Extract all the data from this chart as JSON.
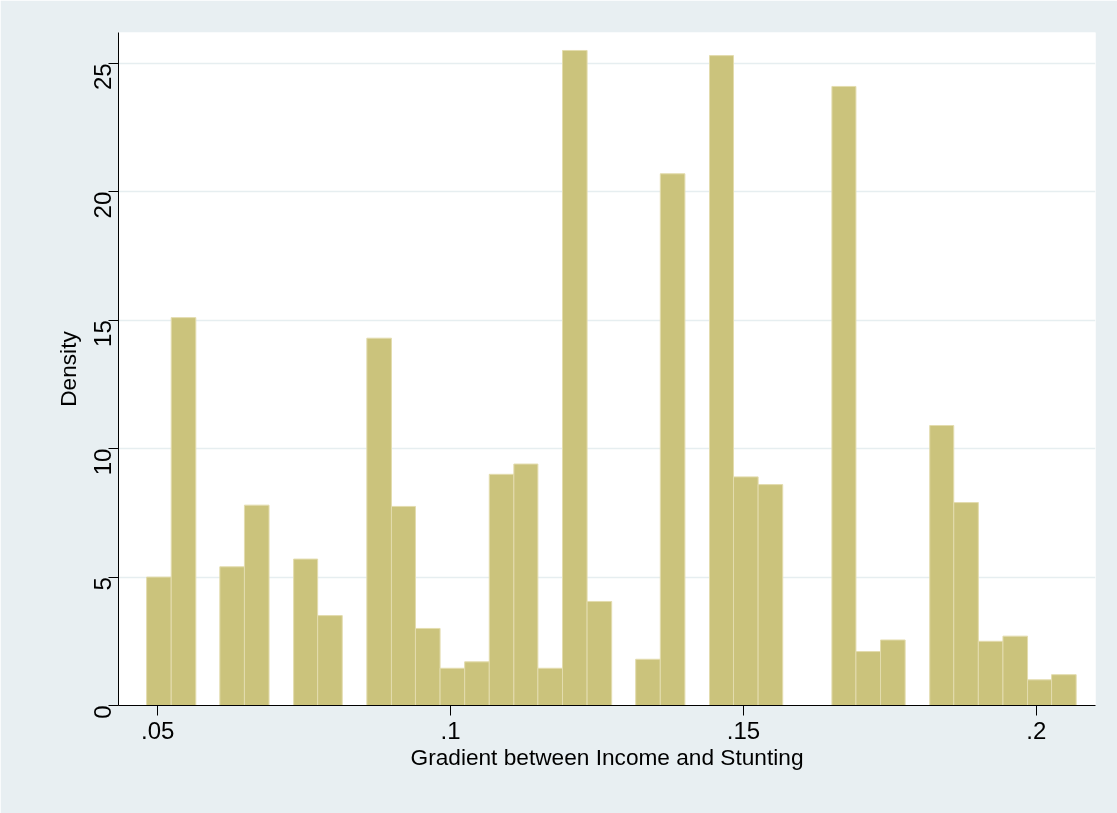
{
  "chart_data": {
    "type": "histogram",
    "xlabel": "Gradient between Income and Stunting",
    "ylabel": "Density",
    "bins": [
      0.0481,
      0.0523,
      0.0565,
      0.0606,
      0.0648,
      0.069,
      0.0732,
      0.0773,
      0.0815,
      0.0857,
      0.0899,
      0.094,
      0.0982,
      0.1024,
      0.1066,
      0.1108,
      0.1149,
      0.1191,
      0.1233,
      0.1275,
      0.1316,
      0.1358,
      0.14,
      0.1442,
      0.1483,
      0.1525,
      0.1567,
      0.1651,
      0.1692,
      0.1734,
      0.1776,
      0.1818,
      0.1859,
      0.1901,
      0.1943,
      0.1985,
      0.2026,
      0.2068
    ],
    "values": [
      5.0,
      15.1,
      0,
      5.4,
      7.8,
      0,
      5.7,
      3.5,
      0,
      14.3,
      7.75,
      3.0,
      1.45,
      1.7,
      9.0,
      9.4,
      1.45,
      25.5,
      4.05,
      0,
      1.8,
      20.7,
      0,
      25.3,
      8.9,
      8.6,
      0,
      24.1,
      2.1,
      2.55,
      0,
      10.9,
      7.9,
      2.5,
      2.7,
      1.0,
      1.2
    ],
    "color": "#cbc37c",
    "xlim": [
      0.0433,
      0.2101
    ],
    "ylim": [
      0,
      26.2
    ],
    "xticks": [
      {
        "value": 0.05,
        "label": ".05"
      },
      {
        "value": 0.1,
        "label": ".1"
      },
      {
        "value": 0.15,
        "label": ".15"
      },
      {
        "value": 0.2,
        "label": ".2"
      }
    ],
    "yticks": [
      0,
      5,
      10,
      15,
      20,
      25
    ],
    "grid": "y"
  }
}
